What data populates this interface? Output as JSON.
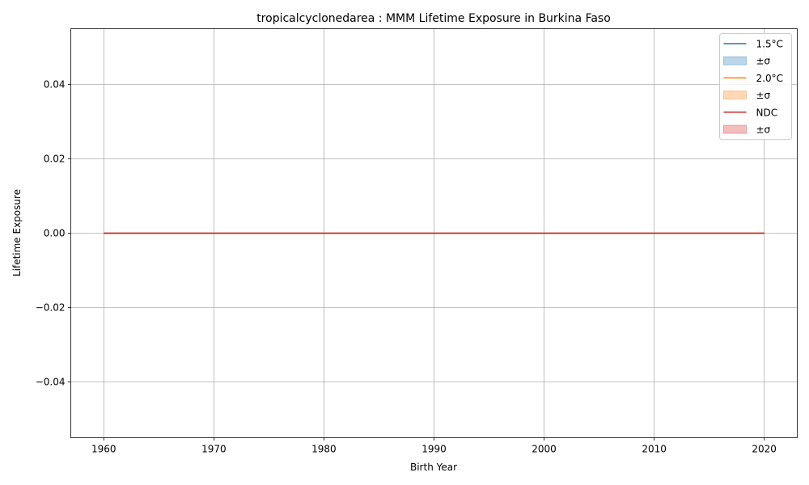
{
  "chart_data": {
    "type": "line",
    "title": "tropicalcyclonedarea : MMM Lifetime Exposure in Burkina Faso",
    "xlabel": "Birth Year",
    "ylabel": "Lifetime Exposure",
    "xlim": [
      1957,
      2023
    ],
    "ylim": [
      -0.055,
      0.055
    ],
    "x_ticks": [
      1960,
      1970,
      1980,
      1990,
      2000,
      2010,
      2020
    ],
    "x_tick_labels": [
      "1960",
      "1970",
      "1980",
      "1990",
      "2000",
      "2010",
      "2020"
    ],
    "y_ticks": [
      -0.04,
      -0.02,
      0.0,
      0.02,
      0.04
    ],
    "y_tick_labels": [
      "−0.04",
      "−0.02",
      "0.00",
      "0.02",
      "0.04"
    ],
    "grid": true,
    "legend_position": "top-right",
    "x": [
      1960,
      1965,
      1970,
      1975,
      1980,
      1985,
      1990,
      1995,
      2000,
      2005,
      2010,
      2015,
      2020
    ],
    "series": [
      {
        "name": "1.5°C",
        "color": "#1f77b4",
        "values": [
          0,
          0,
          0,
          0,
          0,
          0,
          0,
          0,
          0,
          0,
          0,
          0,
          0
        ],
        "lower": [
          0,
          0,
          0,
          0,
          0,
          0,
          0,
          0,
          0,
          0,
          0,
          0,
          0
        ],
        "upper": [
          0,
          0,
          0,
          0,
          0,
          0,
          0,
          0,
          0,
          0,
          0,
          0,
          0
        ],
        "band_label": "±σ",
        "band_color": "#1f77b4"
      },
      {
        "name": "2.0°C",
        "color": "#ff7f0e",
        "values": [
          0,
          0,
          0,
          0,
          0,
          0,
          0,
          0,
          0,
          0,
          0,
          0,
          0
        ],
        "lower": [
          0,
          0,
          0,
          0,
          0,
          0,
          0,
          0,
          0,
          0,
          0,
          0,
          0
        ],
        "upper": [
          0,
          0,
          0,
          0,
          0,
          0,
          0,
          0,
          0,
          0,
          0,
          0,
          0
        ],
        "band_label": "±σ",
        "band_color": "#ff7f0e"
      },
      {
        "name": "NDC",
        "color": "#d62728",
        "values": [
          0,
          0,
          0,
          0,
          0,
          0,
          0,
          0,
          0,
          0,
          0,
          0,
          0
        ],
        "lower": [
          0,
          0,
          0,
          0,
          0,
          0,
          0,
          0,
          0,
          0,
          0,
          0,
          0
        ],
        "upper": [
          0,
          0,
          0,
          0,
          0,
          0,
          0,
          0,
          0,
          0,
          0,
          0,
          0
        ],
        "band_label": "±σ",
        "band_color": "#d62728"
      }
    ]
  }
}
